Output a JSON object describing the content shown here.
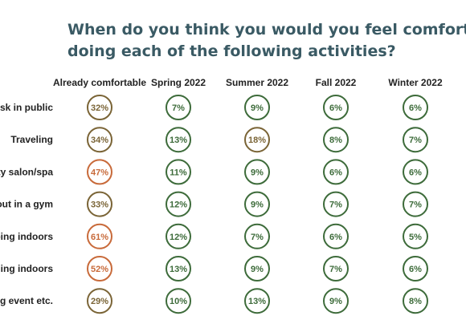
{
  "title": {
    "line1": "When do you think you would you feel comfortable ag",
    "line2": "doing each of the following activities?"
  },
  "colors": {
    "green": "#3d6b3a",
    "brown": "#7a6436",
    "orange": "#c86a3a",
    "title": "#3a5a64"
  },
  "chart_data": {
    "type": "table",
    "columns": [
      "Already comfortable",
      "Spring 2022",
      "Summer 2022",
      "Fall 2022",
      "Winter 2022"
    ],
    "rows": [
      "sk in public",
      "Traveling",
      "ty salon/spa",
      "out in a gym",
      "ping indoors",
      "ning indoors",
      "g event etc."
    ],
    "values": [
      [
        "32%",
        "7%",
        "9%",
        "6%",
        "6%"
      ],
      [
        "34%",
        "13%",
        "18%",
        "8%",
        "7%"
      ],
      [
        "47%",
        "11%",
        "9%",
        "6%",
        "6%"
      ],
      [
        "33%",
        "12%",
        "9%",
        "7%",
        "7%"
      ],
      [
        "61%",
        "12%",
        "7%",
        "6%",
        "5%"
      ],
      [
        "52%",
        "13%",
        "9%",
        "7%",
        "6%"
      ],
      [
        "29%",
        "10%",
        "13%",
        "9%",
        "8%"
      ]
    ],
    "circle_colors": [
      [
        "brown",
        "green",
        "green",
        "green",
        "green"
      ],
      [
        "brown",
        "green",
        "brown",
        "green",
        "green"
      ],
      [
        "orange",
        "green",
        "green",
        "green",
        "green"
      ],
      [
        "brown",
        "green",
        "green",
        "green",
        "green"
      ],
      [
        "orange",
        "green",
        "green",
        "green",
        "green"
      ],
      [
        "orange",
        "green",
        "green",
        "green",
        "green"
      ],
      [
        "brown",
        "green",
        "green",
        "green",
        "green"
      ]
    ]
  }
}
